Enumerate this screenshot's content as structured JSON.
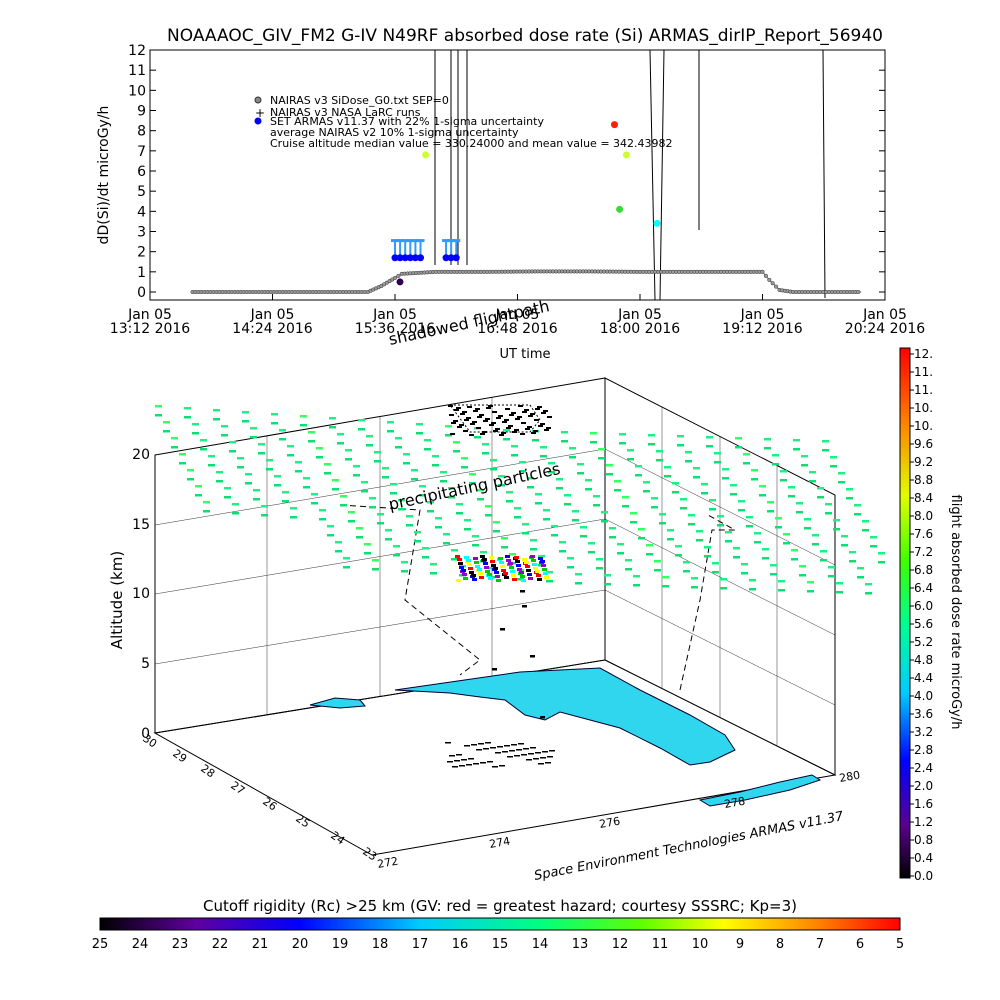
{
  "top_chart": {
    "title": "NOAAAOC_GIV_FM2 G-IV   N49RF  absorbed dose rate (Si) ARMAS_dirIP_Report_56940",
    "ylabel": "dD(Si)/dt microGy/h",
    "xlabel": "UT time",
    "legend": [
      "NAIRAS v3 SiDose_G0.txt SEP=0",
      "NAIRAS v3 NASA LaRC runs",
      "SET ARMAS v11.37 with 22% 1-sigma uncertainty",
      "average NAIRAS v2 10% 1-sigma uncertainty",
      "Cruise altitude median value = 330.24000 and mean value = 342.43982"
    ],
    "xtick_labels": [
      [
        "Jan 05",
        "13:12 2016"
      ],
      [
        "Jan 05",
        "14:24 2016"
      ],
      [
        "Jan 05",
        "15:36 2016"
      ],
      [
        "Jan 05",
        "16:48 2016"
      ],
      [
        "Jan 05",
        "18:00 2016"
      ],
      [
        "Jan 05",
        "19:12 2016"
      ],
      [
        "Jan 05",
        "20:24 2016"
      ]
    ],
    "ytick_labels": [
      "0",
      "1",
      "2",
      "3",
      "4",
      "5",
      "6",
      "7",
      "8",
      "9",
      "10",
      "11",
      "12"
    ]
  },
  "chart_data": [
    {
      "type": "scatter",
      "ylim": [
        0,
        12
      ],
      "series": [
        {
          "name": "NAIRAS v3 SiDose_G0.txt SEP=0",
          "color": "#555555",
          "x": [
            "13:37",
            "14:00",
            "14:30",
            "15:00",
            "15:20",
            "15:28",
            "15:36",
            "15:40",
            "15:50",
            "16:00",
            "16:30",
            "17:00",
            "17:30",
            "18:00",
            "18:30",
            "19:00",
            "19:12",
            "19:16",
            "19:22",
            "19:30",
            "20:00",
            "20:10"
          ],
          "y": [
            0,
            0,
            0,
            0,
            0,
            0.3,
            0.7,
            0.9,
            0.95,
            1.0,
            1.0,
            1.02,
            1.02,
            1.0,
            1.0,
            1.0,
            1.0,
            0.6,
            0.1,
            0,
            0,
            0
          ]
        },
        {
          "name": "SET ARMAS v11.37 with 22% 1-sigma uncertainty",
          "color": "#0000ff",
          "x": [
            "15:36",
            "15:39",
            "15:42",
            "15:45",
            "15:48",
            "15:51",
            "15:54",
            "16:06",
            "16:09",
            "16:12"
          ],
          "y": [
            1.7,
            1.7,
            1.7,
            1.7,
            1.7,
            1.7,
            6.8,
            1.7,
            1.7,
            1.7
          ]
        },
        {
          "name": "",
          "color": "#ff0000",
          "x": [
            "17:45",
            "17:48",
            "17:52",
            "18:10"
          ],
          "y": [
            8.3,
            4.1,
            6.8,
            3.4
          ]
        }
      ]
    },
    {
      "type": "scatter",
      "title": "",
      "xlabel": "",
      "ylabel": "Altitude (km)",
      "zlim": [
        0,
        20
      ],
      "z_ticks": [
        "0",
        "5",
        "10",
        "15",
        "20"
      ],
      "lat_ticks": [
        "30",
        "29",
        "28",
        "27",
        "26",
        "25",
        "24",
        "23"
      ],
      "lon_ticks": [
        "272",
        "274",
        "276",
        "278",
        "280"
      ],
      "annotations": [
        "shadowed flightpath",
        "precipitating particles"
      ],
      "credit": "Space Environment Technologies ARMAS v11.37"
    }
  ],
  "colorbar_right": {
    "label": "flight absorbed dose rate microGy/h",
    "ticks": [
      "12.",
      "11.",
      "11.",
      "10.",
      "10.",
      "9.6",
      "9.2",
      "8.8",
      "8.4",
      "8.0",
      "7.6",
      "7.2",
      "6.8",
      "6.4",
      "6.0",
      "5.6",
      "5.2",
      "4.8",
      "4.4",
      "4.0",
      "3.6",
      "3.2",
      "2.8",
      "2.4",
      "2.0",
      "1.6",
      "1.2",
      "0.8",
      "0.4",
      "0.0"
    ]
  },
  "colorbar_bottom": {
    "label": "Cutoff rigidity (Rc) >25 km (GV: red = greatest hazard; courtesy SSSRC; Kp=3)",
    "ticks": [
      "25",
      "24",
      "23",
      "22",
      "21",
      "20",
      "19",
      "18",
      "17",
      "16",
      "15",
      "14",
      "13",
      "12",
      "11",
      "10",
      "9",
      "8",
      "7",
      "6",
      "5"
    ]
  }
}
